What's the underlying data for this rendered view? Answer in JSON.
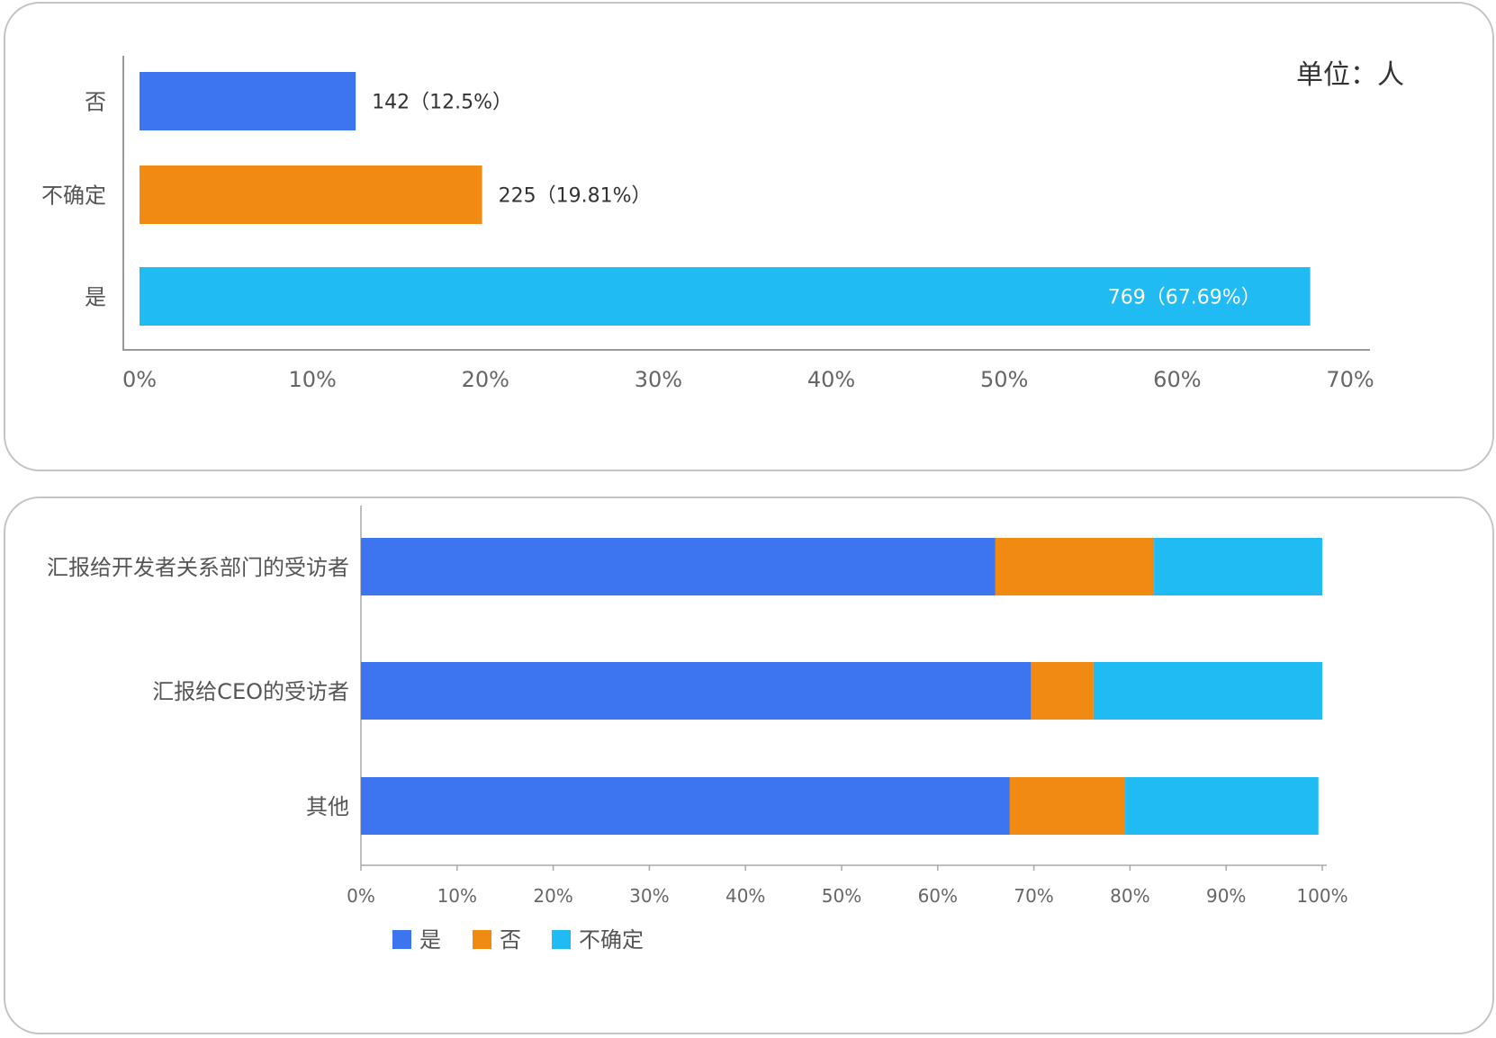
{
  "chart_data": [
    {
      "type": "bar",
      "orientation": "horizontal",
      "unit_note": "单位：人",
      "categories": [
        "否",
        "不确定",
        "是"
      ],
      "values": [
        142,
        225,
        769
      ],
      "percentages": [
        12.5,
        19.81,
        67.69
      ],
      "data_labels": [
        "142（12.5%）",
        "225（19.81%）",
        "769（67.69%）"
      ],
      "colors": [
        "#3d74f0",
        "#f08a12",
        "#1fbbf2"
      ],
      "xlim": [
        0,
        70
      ],
      "x_ticks": [
        "0%",
        "10%",
        "20%",
        "30%",
        "40%",
        "50%",
        "60%",
        "70%"
      ]
    },
    {
      "type": "bar",
      "orientation": "horizontal",
      "stacked": true,
      "categories": [
        "汇报给开发者关系部门的受访者",
        "汇报给CEO的受访者",
        "其他"
      ],
      "series": [
        {
          "name": "是",
          "color": "#3d74f0",
          "values": [
            66,
            69.7,
            67.5
          ]
        },
        {
          "name": "否",
          "color": "#f08a12",
          "values": [
            16.5,
            6.5,
            12
          ]
        },
        {
          "name": "不确定",
          "color": "#1fbbf2",
          "values": [
            17.5,
            23.8,
            20.1
          ]
        }
      ],
      "xlim": [
        0,
        100
      ],
      "x_ticks": [
        "0%",
        "10%",
        "20%",
        "30%",
        "40%",
        "50%",
        "60%",
        "70%",
        "80%",
        "90%",
        "100%"
      ],
      "legend_position": "bottom"
    }
  ]
}
